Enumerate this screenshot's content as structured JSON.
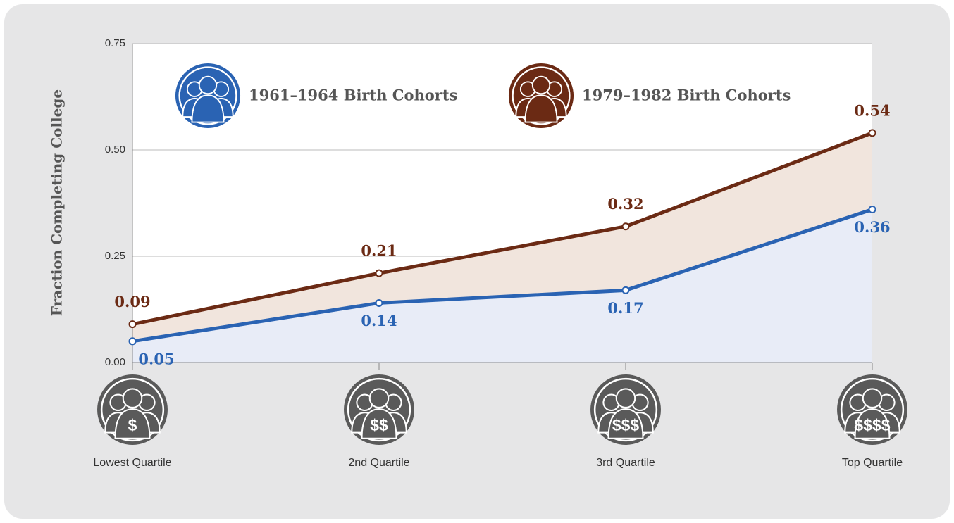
{
  "chart_data": {
    "type": "line",
    "ylabel": "Fraction Completing College",
    "categories": [
      "Lowest Quartile",
      "2nd Quartile",
      "3rd Quartile",
      "Top Quartile"
    ],
    "category_icons": [
      "$",
      "$$",
      "$$$",
      "$$$$"
    ],
    "series": [
      {
        "name": "1961–1964 Birth Cohorts",
        "color": "#2a63b3",
        "fill": "#e8ecf7",
        "values": [
          0.05,
          0.14,
          0.17,
          0.36
        ]
      },
      {
        "name": "1979–1982 Birth Cohorts",
        "color": "#6b2a14",
        "fill": "#f1e5dd",
        "values": [
          0.09,
          0.21,
          0.32,
          0.54
        ]
      }
    ],
    "ylim": [
      0,
      0.75
    ],
    "yticks": [
      {
        "value": 0,
        "label": "0.00"
      },
      0.25,
      {
        "value": 0.5,
        "label": "0.50"
      },
      0.75
    ],
    "grid": true
  }
}
